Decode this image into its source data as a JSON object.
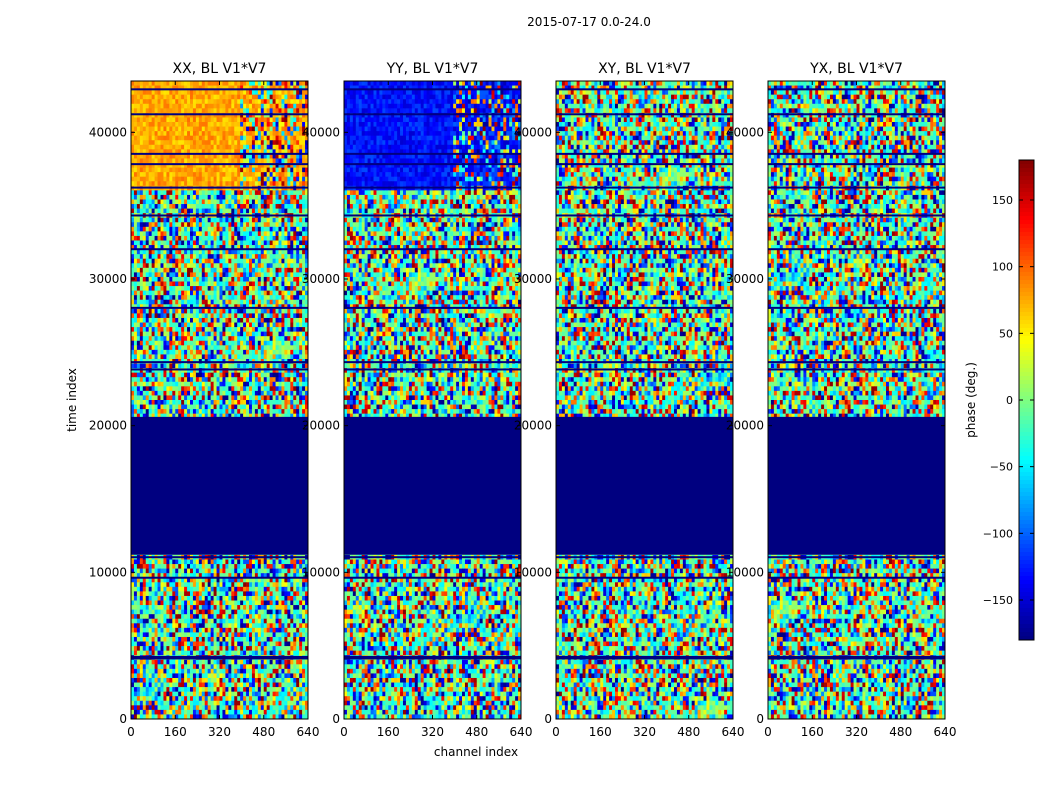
{
  "figure": {
    "suptitle": "2015-07-17 0.0-24.0",
    "xlabel": "channel index",
    "ylabel": "time index"
  },
  "chart_data": {
    "type": "heatmap",
    "colormap": "jet",
    "x_range": [
      0,
      640
    ],
    "y_range": [
      0,
      43500
    ],
    "x_ticks": [
      0,
      160,
      320,
      480,
      640
    ],
    "y_ticks": [
      0,
      10000,
      20000,
      30000,
      40000
    ],
    "flagged_time_range": [
      11200,
      20500
    ],
    "panels": [
      {
        "title": "XX, BL V1*V7",
        "dominant_phase_upper": 75
      },
      {
        "title": "YY, BL V1*V7",
        "dominant_phase_upper": -130
      },
      {
        "title": "XY, BL V1*V7",
        "dominant_phase_upper": null
      },
      {
        "title": "YX, BL V1*V7",
        "dominant_phase_upper": null
      }
    ],
    "colorbar": {
      "label": "phase (deg.)",
      "range": [
        -180,
        180
      ],
      "ticks": [
        -150,
        -100,
        -50,
        0,
        50,
        100,
        150
      ],
      "tick_labels": [
        "−150",
        "−100",
        "−50",
        "0",
        "50",
        "100",
        "150"
      ]
    }
  }
}
